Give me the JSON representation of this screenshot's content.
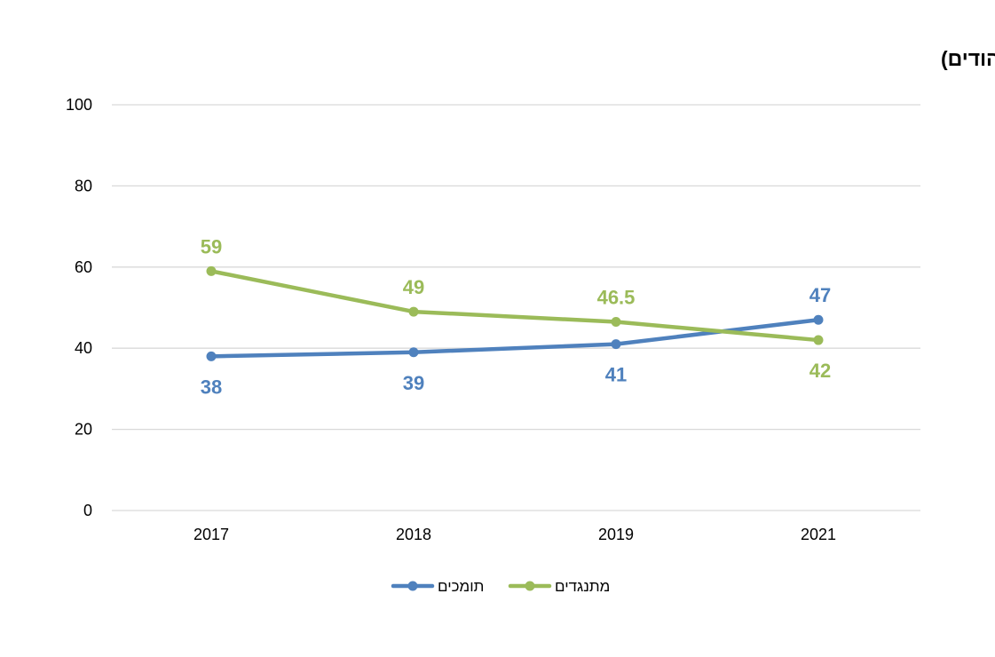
{
  "chart_data": {
    "type": "line",
    "title": "מתנגדים/ תומכים בביטול גיוס החובה וביסוס צה\"ל כצבא מקצועי (%, יהודים)",
    "categories": [
      "2017",
      "2018",
      "2019",
      "2021"
    ],
    "ylim": [
      0,
      100
    ],
    "yticks": [
      "0",
      "20",
      "40",
      "60",
      "80",
      "100"
    ],
    "grid": true,
    "legend_position": "bottom",
    "series": [
      {
        "name": "תומכים",
        "color": "#4f81bd",
        "values": [
          38,
          39,
          41,
          47
        ],
        "labels": [
          "38",
          "39",
          "41",
          "47"
        ]
      },
      {
        "name": "מתנגדים",
        "color": "#9bbb59",
        "values": [
          59,
          49,
          46.5,
          42
        ],
        "labels": [
          "59",
          "49",
          "46.5",
          "42"
        ]
      }
    ]
  }
}
